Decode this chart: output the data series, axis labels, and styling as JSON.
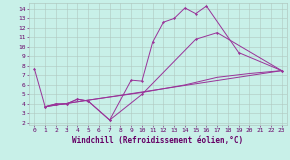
{
  "background_color": "#c8f0e8",
  "grid_color": "#b0c8c0",
  "line_color": "#993399",
  "font_color": "#660066",
  "xlabel": "Windchill (Refroidissement éolien,°C)",
  "tick_fontsize": 4.5,
  "label_fontsize": 5.5,
  "xlim": [
    -0.5,
    23.5
  ],
  "ylim": [
    1.8,
    14.6
  ],
  "xticks": [
    0,
    1,
    2,
    3,
    4,
    5,
    6,
    7,
    8,
    9,
    10,
    11,
    12,
    13,
    14,
    15,
    16,
    17,
    18,
    19,
    20,
    21,
    22,
    23
  ],
  "yticks": [
    2,
    3,
    4,
    5,
    6,
    7,
    8,
    9,
    10,
    11,
    12,
    13,
    14
  ],
  "line1_x": [
    1,
    23
  ],
  "line1_y": [
    3.7,
    7.5
  ],
  "line2_x": [
    0,
    1,
    2,
    3,
    4,
    5,
    7,
    9,
    10,
    11,
    12,
    13,
    14,
    15,
    16,
    19,
    23
  ],
  "line2_y": [
    7.7,
    3.7,
    4.0,
    4.0,
    4.5,
    4.3,
    2.3,
    6.5,
    6.4,
    10.5,
    12.6,
    13.0,
    14.1,
    13.5,
    14.3,
    9.4,
    7.5
  ],
  "line3_x": [
    1,
    2,
    3,
    4,
    5,
    7,
    10,
    15,
    17,
    23
  ],
  "line3_y": [
    3.7,
    4.0,
    4.0,
    4.5,
    4.3,
    2.3,
    5.0,
    10.8,
    11.5,
    7.5
  ],
  "line4_x": [
    1,
    5,
    10,
    14,
    17,
    20,
    23
  ],
  "line4_y": [
    3.7,
    4.4,
    5.2,
    6.0,
    6.8,
    7.2,
    7.5
  ]
}
